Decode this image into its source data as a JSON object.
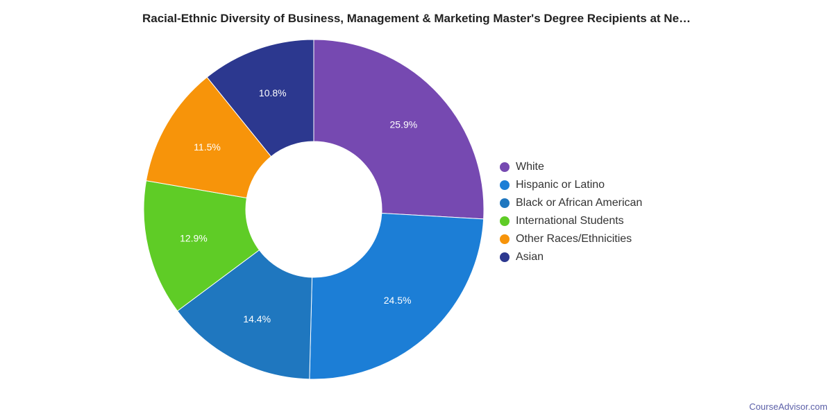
{
  "chart_data": {
    "type": "pie",
    "donut": true,
    "title": "Racial-Ethnic Diversity of Business, Management & Marketing Master's Degree Recipients at Ne…",
    "categories": [
      "White",
      "Hispanic or Latino",
      "Black or African American",
      "International Students",
      "Other Races/Ethnicities",
      "Asian"
    ],
    "values": [
      25.9,
      24.5,
      14.4,
      12.9,
      11.5,
      10.8
    ],
    "labels": [
      "25.9%",
      "24.5%",
      "14.4%",
      "12.9%",
      "11.5%",
      "10.8%"
    ],
    "colors": [
      "#7649b1",
      "#1c7ed6",
      "#1f77bf",
      "#5fcc26",
      "#f7940a",
      "#2c388f"
    ],
    "legend_position": "right"
  },
  "credit": "CourseAdvisor.com"
}
